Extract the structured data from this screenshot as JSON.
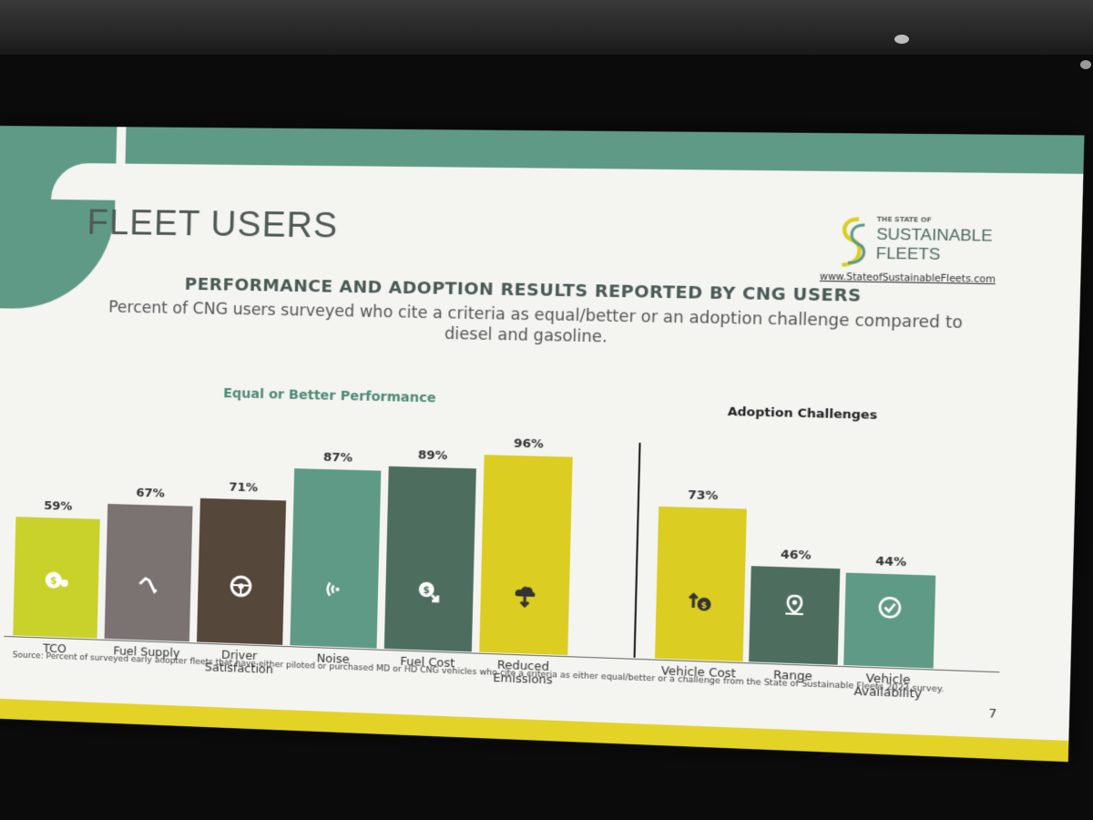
{
  "slide": {
    "title": "FLEET USERS",
    "logo": {
      "top": "THE STATE OF",
      "line1": "SUSTAINABLE",
      "line2": "FLEETS",
      "url": "www.StateofSustainableFleets.com"
    },
    "heading": "PERFORMANCE AND ADOPTION RESULTS REPORTED BY CNG USERS",
    "subtitle": "Percent of CNG users surveyed who cite a criteria as equal/better or an adoption challenge compared to diesel and gasoline.",
    "source": "Source: Percent of surveyed early adopter fleets that have either piloted or purchased MD or HD CNG vehicles who cite a criteria as either equal/better or a challenge from the State of Sustainable Fleets 2022 survey.",
    "page_number": "7"
  },
  "colors": {
    "teal": "#5f9a86",
    "lime": "#c9d22a",
    "gray": "#7b7272",
    "brown": "#55473a",
    "dark_green": "#4d6e5f",
    "yellow": "#dccd23",
    "band_yellow": "#e3d326"
  },
  "chart_data": [
    {
      "type": "bar",
      "title": "Equal or Better Performance",
      "categories": [
        "TCO",
        "Fuel Supply",
        "Driver Satisfaction",
        "Noise",
        "Fuel Cost",
        "Reduced Emissions"
      ],
      "values": [
        59,
        67,
        71,
        87,
        89,
        96
      ],
      "value_labels": [
        "59%",
        "67%",
        "71%",
        "87%",
        "89%",
        "96%"
      ],
      "bar_colors": [
        "#c9d22a",
        "#7b7272",
        "#55473a",
        "#5f9a86",
        "#4d6e5f",
        "#dccd23"
      ],
      "icons": [
        "dollar-coins-icon",
        "fuel-nozzle-icon",
        "steering-wheel-icon",
        "sound-waves-icon",
        "dollar-down-icon",
        "cloud-icon"
      ],
      "ylim": [
        0,
        100
      ]
    },
    {
      "type": "bar",
      "title": "Adoption Challenges",
      "categories": [
        "Vehicle Cost",
        "Range",
        "Vehicle Availability"
      ],
      "values": [
        73,
        46,
        44
      ],
      "value_labels": [
        "73%",
        "46%",
        "44%"
      ],
      "bar_colors": [
        "#dccd23",
        "#4d6e5f",
        "#5f9a86"
      ],
      "icons": [
        "dollar-up-icon",
        "location-pin-icon",
        "check-circle-icon"
      ],
      "ylim": [
        0,
        100
      ]
    }
  ]
}
